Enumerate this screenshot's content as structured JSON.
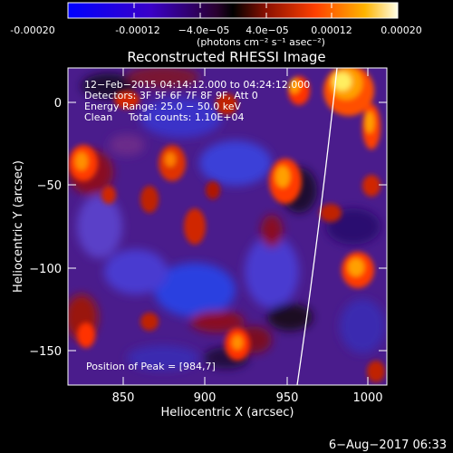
{
  "colorbar": {
    "tick_labels": [
      "-0.00020",
      "-0.00012",
      "−4.0e−05",
      "4.0e−05",
      "0.00012",
      "0.00020"
    ],
    "unit_label": "(photons cm⁻² s⁻¹ asec⁻²)",
    "vmin": -0.0002,
    "vmax": 0.0002
  },
  "plot": {
    "title": "Reconstructed RHESSI Image",
    "info_lines": [
      "12−Feb−2015 04:14:12.000 to 04:24:12.000",
      "Detectors: 3F 5F 6F 7F 8F 9F, Att 0",
      "Energy Range: 25.0 − 50.0 keV",
      "Clean     Total counts: 1.10E+04"
    ],
    "peak_label": "Position of Peak = [984,7]",
    "xlabel": "Heliocentric X (arcsec)",
    "ylabel": "Heliocentric Y (arcsec)",
    "x_ticks": [
      "850",
      "900",
      "950",
      "1000"
    ],
    "y_ticks": [
      "0",
      "−50",
      "−100",
      "−150"
    ],
    "xlim": [
      819,
      1024
    ],
    "ylim": [
      -172,
      20
    ]
  },
  "footer": {
    "timestamp": "6−Aug−2017 06:33"
  }
}
